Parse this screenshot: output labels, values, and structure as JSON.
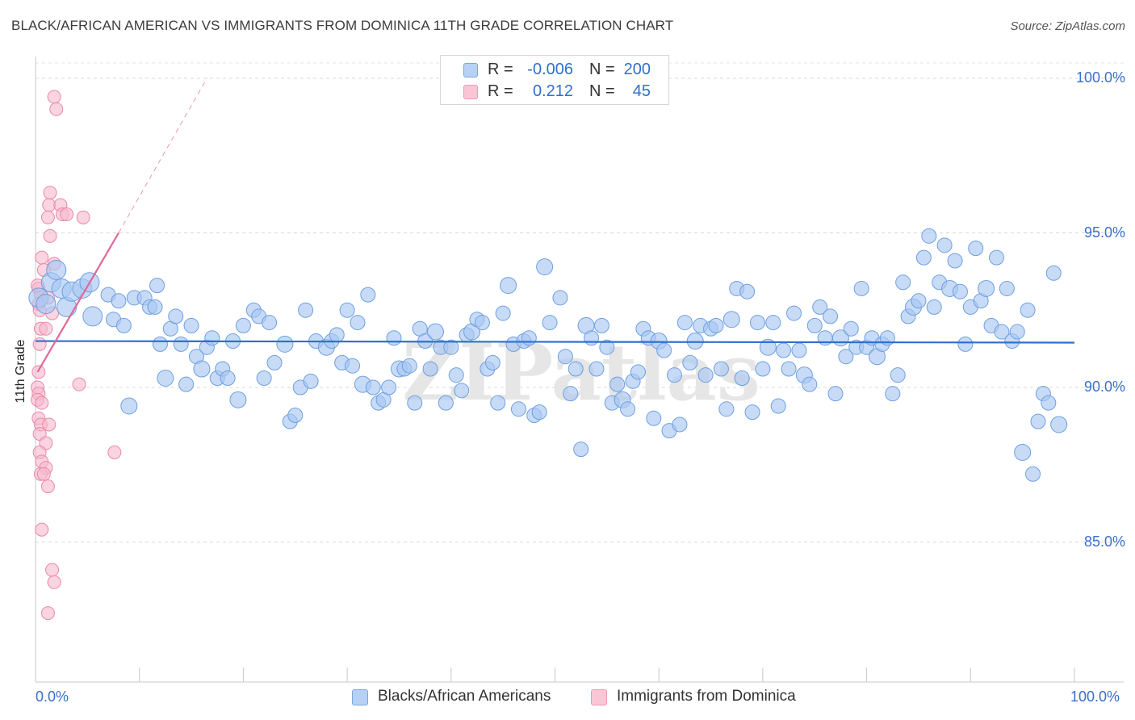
{
  "title": "BLACK/AFRICAN AMERICAN VS IMMIGRANTS FROM DOMINICA 11TH GRADE CORRELATION CHART",
  "source": "Source: ZipAtlas.com",
  "watermark": "ZIPatlas",
  "colors": {
    "blue_fill": "#a9c8f2",
    "blue_stroke": "#6f9fe0",
    "blue_line": "#2f6fd0",
    "pink_fill": "#f7b8cc",
    "pink_stroke": "#ea89a8",
    "pink_line": "#e2669a",
    "tick_label": "#3a70c8",
    "grid": "#d9d9d9"
  },
  "legend": {
    "rows": [
      {
        "r_label": "R =",
        "r_value": "-0.006",
        "n_label": "N =",
        "n_value": "200",
        "color": "#a9c8f2"
      },
      {
        "r_label": "R =",
        "r_value": "0.212",
        "n_label": "N =",
        "n_value": "45",
        "color": "#f7b8cc"
      }
    ]
  },
  "chart_data": {
    "type": "scatter",
    "title": "BLACK/AFRICAN AMERICAN VS IMMIGRANTS FROM DOMINICA 11TH GRADE CORRELATION CHART",
    "xlabel": "",
    "ylabel": "11th Grade",
    "xlim": [
      0,
      100
    ],
    "ylim": [
      80,
      100.5
    ],
    "x_tick_labels": [
      "0.0%",
      "100.0%"
    ],
    "y_ticks": [
      85,
      90,
      95,
      100
    ],
    "y_tick_labels": [
      "85.0%",
      "90.0%",
      "95.0%",
      "100.0%"
    ],
    "grid": true,
    "legend_position": "bottom",
    "series": [
      {
        "name": "Blacks/African Americans",
        "color": "#a9c8f2",
        "trend": {
          "x": [
            0,
            100
          ],
          "y": [
            91.5,
            91.45
          ]
        },
        "points": [
          [
            0.3,
            92.9
          ],
          [
            1.0,
            92.7
          ],
          [
            1.5,
            93.4
          ],
          [
            2.0,
            93.8
          ],
          [
            2.5,
            93.2
          ],
          [
            3.0,
            92.6
          ],
          [
            3.5,
            93.1
          ],
          [
            4.5,
            93.2
          ],
          [
            5.2,
            93.4
          ],
          [
            5.5,
            92.3
          ],
          [
            7.0,
            93.0
          ],
          [
            7.5,
            92.2
          ],
          [
            8.0,
            92.8
          ],
          [
            8.5,
            92.0
          ],
          [
            9.0,
            89.4
          ],
          [
            9.5,
            92.9
          ],
          [
            10.5,
            92.9
          ],
          [
            11.0,
            92.6
          ],
          [
            11.5,
            92.6
          ],
          [
            11.7,
            93.3
          ],
          [
            12.0,
            91.4
          ],
          [
            12.5,
            90.3
          ],
          [
            13.0,
            91.9
          ],
          [
            13.5,
            92.3
          ],
          [
            14.0,
            91.4
          ],
          [
            14.5,
            90.1
          ],
          [
            15.0,
            92.0
          ],
          [
            15.5,
            91.0
          ],
          [
            16.0,
            90.6
          ],
          [
            16.5,
            91.3
          ],
          [
            17.0,
            91.6
          ],
          [
            17.5,
            90.3
          ],
          [
            18.0,
            90.6
          ],
          [
            18.5,
            90.3
          ],
          [
            19.0,
            91.5
          ],
          [
            19.5,
            89.6
          ],
          [
            20.0,
            92.0
          ],
          [
            21.0,
            92.5
          ],
          [
            21.5,
            92.3
          ],
          [
            22.0,
            90.3
          ],
          [
            22.5,
            92.1
          ],
          [
            23.0,
            90.8
          ],
          [
            24.0,
            91.4
          ],
          [
            24.5,
            88.9
          ],
          [
            25.0,
            89.1
          ],
          [
            25.5,
            90.0
          ],
          [
            26.0,
            92.5
          ],
          [
            26.5,
            90.2
          ],
          [
            27.0,
            91.5
          ],
          [
            28.0,
            91.3
          ],
          [
            28.5,
            91.5
          ],
          [
            29.0,
            91.7
          ],
          [
            29.5,
            90.8
          ],
          [
            30.0,
            92.5
          ],
          [
            30.5,
            90.7
          ],
          [
            31.0,
            92.1
          ],
          [
            31.5,
            90.1
          ],
          [
            32.0,
            93.0
          ],
          [
            32.5,
            90.0
          ],
          [
            33.0,
            89.5
          ],
          [
            33.5,
            89.6
          ],
          [
            34.0,
            90.0
          ],
          [
            34.5,
            91.6
          ],
          [
            35.0,
            90.6
          ],
          [
            35.5,
            90.6
          ],
          [
            36.0,
            90.7
          ],
          [
            36.5,
            89.5
          ],
          [
            37.0,
            91.9
          ],
          [
            37.5,
            91.5
          ],
          [
            38.0,
            90.6
          ],
          [
            38.5,
            91.8
          ],
          [
            39.0,
            91.3
          ],
          [
            39.5,
            89.5
          ],
          [
            40.0,
            91.3
          ],
          [
            40.5,
            90.4
          ],
          [
            41.0,
            89.9
          ],
          [
            41.5,
            91.7
          ],
          [
            42.0,
            91.8
          ],
          [
            42.5,
            92.2
          ],
          [
            43.0,
            92.1
          ],
          [
            43.5,
            90.6
          ],
          [
            44.0,
            90.8
          ],
          [
            44.5,
            89.5
          ],
          [
            45.0,
            92.4
          ],
          [
            45.5,
            93.3
          ],
          [
            46.0,
            91.4
          ],
          [
            46.5,
            89.3
          ],
          [
            47.0,
            91.5
          ],
          [
            47.5,
            91.6
          ],
          [
            48.0,
            89.1
          ],
          [
            48.5,
            89.2
          ],
          [
            49.0,
            93.9
          ],
          [
            49.5,
            92.1
          ],
          [
            50.5,
            92.9
          ],
          [
            51.0,
            91.0
          ],
          [
            51.5,
            89.8
          ],
          [
            52.0,
            90.6
          ],
          [
            52.5,
            88.0
          ],
          [
            53.0,
            92.0
          ],
          [
            53.5,
            91.6
          ],
          [
            54.0,
            90.6
          ],
          [
            54.5,
            92.0
          ],
          [
            55.0,
            91.3
          ],
          [
            55.5,
            89.5
          ],
          [
            56.0,
            90.1
          ],
          [
            56.5,
            89.6
          ],
          [
            57.0,
            89.3
          ],
          [
            57.5,
            90.2
          ],
          [
            58.0,
            90.5
          ],
          [
            58.5,
            91.9
          ],
          [
            59.0,
            91.6
          ],
          [
            59.5,
            89.0
          ],
          [
            60.0,
            91.5
          ],
          [
            60.5,
            91.2
          ],
          [
            61.0,
            88.6
          ],
          [
            61.5,
            90.4
          ],
          [
            62.0,
            88.8
          ],
          [
            62.5,
            92.1
          ],
          [
            63.0,
            90.8
          ],
          [
            63.5,
            91.5
          ],
          [
            64.0,
            92.0
          ],
          [
            64.5,
            90.4
          ],
          [
            65.0,
            91.9
          ],
          [
            65.5,
            92.0
          ],
          [
            66.0,
            90.6
          ],
          [
            66.5,
            89.3
          ],
          [
            67.0,
            92.2
          ],
          [
            67.5,
            93.2
          ],
          [
            68.0,
            90.3
          ],
          [
            68.5,
            93.1
          ],
          [
            69.0,
            89.2
          ],
          [
            69.5,
            92.1
          ],
          [
            70.0,
            90.6
          ],
          [
            70.5,
            91.3
          ],
          [
            71.0,
            92.1
          ],
          [
            71.5,
            89.4
          ],
          [
            72.0,
            91.2
          ],
          [
            72.5,
            90.6
          ],
          [
            73.0,
            92.4
          ],
          [
            73.5,
            91.2
          ],
          [
            74.0,
            90.4
          ],
          [
            74.5,
            90.1
          ],
          [
            75.0,
            92.0
          ],
          [
            75.5,
            92.6
          ],
          [
            76.0,
            91.6
          ],
          [
            76.5,
            92.3
          ],
          [
            77.0,
            89.8
          ],
          [
            77.5,
            91.6
          ],
          [
            78.0,
            91.0
          ],
          [
            78.5,
            91.9
          ],
          [
            79.0,
            91.3
          ],
          [
            79.5,
            93.2
          ],
          [
            80.0,
            91.3
          ],
          [
            80.5,
            91.6
          ],
          [
            81.0,
            91.0
          ],
          [
            81.5,
            91.4
          ],
          [
            82.0,
            91.6
          ],
          [
            82.5,
            89.8
          ],
          [
            83.0,
            90.4
          ],
          [
            83.5,
            93.4
          ],
          [
            84.0,
            92.3
          ],
          [
            84.5,
            92.6
          ],
          [
            85.0,
            92.8
          ],
          [
            85.5,
            94.2
          ],
          [
            86.0,
            94.9
          ],
          [
            86.5,
            92.6
          ],
          [
            87.0,
            93.4
          ],
          [
            87.5,
            94.6
          ],
          [
            88.0,
            93.2
          ],
          [
            88.5,
            94.1
          ],
          [
            89.0,
            93.1
          ],
          [
            89.5,
            91.4
          ],
          [
            90.0,
            92.6
          ],
          [
            90.5,
            94.5
          ],
          [
            91.0,
            92.8
          ],
          [
            91.5,
            93.2
          ],
          [
            92.0,
            92.0
          ],
          [
            92.5,
            94.2
          ],
          [
            93.0,
            91.8
          ],
          [
            93.5,
            93.2
          ],
          [
            94.0,
            91.5
          ],
          [
            94.5,
            91.8
          ],
          [
            95.0,
            87.9
          ],
          [
            95.5,
            92.5
          ],
          [
            96.0,
            87.2
          ],
          [
            96.5,
            88.9
          ],
          [
            97.0,
            89.8
          ],
          [
            97.5,
            89.5
          ],
          [
            98.0,
            93.7
          ],
          [
            98.5,
            88.8
          ]
        ]
      },
      {
        "name": "Immigrants from Dominica",
        "color": "#f7b8cc",
        "trend": {
          "x": [
            0.2,
            8.0
          ],
          "y": [
            90.5,
            95.0
          ]
        },
        "trend_dashed_extension": {
          "x": [
            8.0,
            16.5
          ],
          "y": [
            95.0,
            100.0
          ]
        },
        "points": [
          [
            1.8,
            99.4
          ],
          [
            2.0,
            99.0
          ],
          [
            1.4,
            96.3
          ],
          [
            1.3,
            95.9
          ],
          [
            2.4,
            95.9
          ],
          [
            1.2,
            95.5
          ],
          [
            2.6,
            95.6
          ],
          [
            3.0,
            95.6
          ],
          [
            4.6,
            95.5
          ],
          [
            1.4,
            94.9
          ],
          [
            0.6,
            94.2
          ],
          [
            1.8,
            94.0
          ],
          [
            0.8,
            93.8
          ],
          [
            0.3,
            93.2
          ],
          [
            0.5,
            93.0
          ],
          [
            1.2,
            92.9
          ],
          [
            0.3,
            92.7
          ],
          [
            1.6,
            92.4
          ],
          [
            0.5,
            91.9
          ],
          [
            1.0,
            91.9
          ],
          [
            0.4,
            91.4
          ],
          [
            0.3,
            90.5
          ],
          [
            0.2,
            90.0
          ],
          [
            0.3,
            89.8
          ],
          [
            0.2,
            89.6
          ],
          [
            0.6,
            89.5
          ],
          [
            4.2,
            90.1
          ],
          [
            0.3,
            89.0
          ],
          [
            0.5,
            88.8
          ],
          [
            1.3,
            88.8
          ],
          [
            0.4,
            88.5
          ],
          [
            1.0,
            88.2
          ],
          [
            0.4,
            87.9
          ],
          [
            0.6,
            87.6
          ],
          [
            1.0,
            87.4
          ],
          [
            0.5,
            87.2
          ],
          [
            0.8,
            87.2
          ],
          [
            7.6,
            87.9
          ],
          [
            1.2,
            86.8
          ],
          [
            0.6,
            85.4
          ],
          [
            1.6,
            84.1
          ],
          [
            1.8,
            83.7
          ],
          [
            1.2,
            82.7
          ],
          [
            0.2,
            93.3
          ],
          [
            0.4,
            92.5
          ]
        ]
      }
    ]
  }
}
